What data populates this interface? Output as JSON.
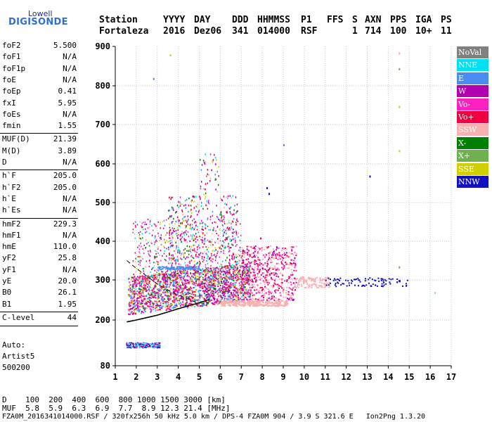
{
  "logo": {
    "line1": "Lowell",
    "line2": "DIGISONDE"
  },
  "header": {
    "labels": [
      "Station",
      "YYYY",
      "DAY",
      "DDD",
      "HHMMSS",
      "P1",
      "FFS",
      "S",
      "AXN",
      "PPS",
      "IGA",
      "PS"
    ],
    "values": [
      "Fortaleza",
      "2016",
      "Dez06",
      "341",
      "014000",
      "RSF",
      "1",
      "714",
      "100",
      "10+",
      "11"
    ]
  },
  "params": [
    {
      "name": "foF2",
      "value": "5.500"
    },
    {
      "name": "foF1",
      "value": "N/A"
    },
    {
      "name": "foF1p",
      "value": "N/A"
    },
    {
      "name": "foE",
      "value": "N/A"
    },
    {
      "name": "foEp",
      "value": "0.41"
    },
    {
      "name": "fxI",
      "value": "5.95"
    },
    {
      "name": "foEs",
      "value": "N/A"
    },
    {
      "name": "fmin",
      "value": "1.55"
    },
    {
      "name": "MUF(D)",
      "value": "21.39"
    },
    {
      "name": "M(D)",
      "value": "3.89"
    },
    {
      "name": "D",
      "value": "N/A"
    },
    {
      "name": "h`F",
      "value": "205.0"
    },
    {
      "name": "h`F2",
      "value": "205.0"
    },
    {
      "name": "h`E",
      "value": "N/A"
    },
    {
      "name": "h`Es",
      "value": "N/A"
    },
    {
      "name": "hmF2",
      "value": "229.3"
    },
    {
      "name": "hmF1",
      "value": "N/A"
    },
    {
      "name": "hmE",
      "value": "110.0"
    },
    {
      "name": "yF2",
      "value": "25.8"
    },
    {
      "name": "yF1",
      "value": "N/A"
    },
    {
      "name": "yE",
      "value": "20.0"
    },
    {
      "name": "B0",
      "value": "26.1"
    },
    {
      "name": "B1",
      "value": "1.95"
    },
    {
      "name": "C-level",
      "value": "44"
    }
  ],
  "footer": {
    "auto": "Auto:",
    "artist": "Artist5",
    "version": "500200"
  },
  "legend": [
    {
      "label": "NoVal",
      "color": "#808080"
    },
    {
      "label": "NNE",
      "color": "#00e0f0"
    },
    {
      "label": "E",
      "color": "#4a8cf0"
    },
    {
      "label": "W",
      "color": "#b000b0"
    },
    {
      "label": "Vo-",
      "color": "#ff20c0"
    },
    {
      "label": "Vo+",
      "color": "#f00040"
    },
    {
      "label": "SSW",
      "color": "#f8b0b0"
    },
    {
      "label": "X-",
      "color": "#008000"
    },
    {
      "label": "X+",
      "color": "#70b050"
    },
    {
      "label": "SSE",
      "color": "#d0d000"
    },
    {
      "label": "NNW",
      "color": "#1010c0"
    }
  ],
  "chart_data": {
    "type": "scatter",
    "xlim": [
      1,
      17
    ],
    "ylim": [
      80,
      900
    ],
    "xticks": [
      "1",
      "2",
      "3",
      "4",
      "5",
      "6",
      "7",
      "8",
      "9",
      "10",
      "11",
      "12",
      "13",
      "14",
      "15",
      "16",
      "17"
    ],
    "yticks": [
      "80",
      "200",
      "300",
      "400",
      "500",
      "600",
      "700",
      "800",
      "900"
    ],
    "grid": true,
    "trace_points": [
      [
        1.55,
        195
      ],
      [
        2,
        200
      ],
      [
        2.5,
        206
      ],
      [
        3,
        212
      ],
      [
        3.5,
        220
      ],
      [
        4,
        228
      ],
      [
        4.5,
        236
      ],
      [
        5,
        243
      ],
      [
        5.3,
        248
      ],
      [
        5.5,
        252
      ]
    ],
    "dashed_points": [
      [
        1.55,
        350
      ],
      [
        2,
        330
      ],
      [
        2.5,
        310
      ],
      [
        3,
        290
      ],
      [
        3.5,
        275
      ],
      [
        4,
        262
      ],
      [
        4.5,
        252
      ],
      [
        5,
        240
      ]
    ]
  },
  "bottom": {
    "d_row": "D    100  200  400  600  800 1000 1500 3000 [km]",
    "muf_row": "MUF  5.8  5.9  6.3  6.9  7.7  8.9 12.3 21.4 [MHz]",
    "file_row": "FZA0M_2016341014000.RSF / 320fx256h 50 kHz 5.0 km / DPS-4 FZA0M 904 / 3.9 S 321.6 E   Ion2Png 1.3.20"
  }
}
